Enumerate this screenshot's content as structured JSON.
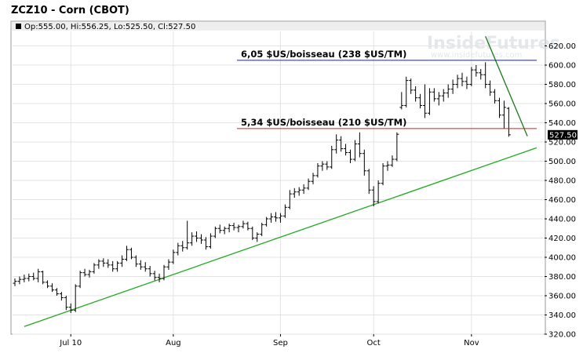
{
  "chart_data": {
    "type": "ohlc",
    "title": "ZCZ10 - Corn (CBOT)",
    "ohlc_summary": "Op:555.00, Hi:556.25, Lo:525.50, Cl:527.50",
    "last_price_label": "527.50",
    "watermark": "InsideFutures",
    "watermark_url": "www.insidefutures.com",
    "ylim": [
      320,
      640
    ],
    "y_ticks": [
      320,
      340,
      360,
      380,
      400,
      420,
      440,
      460,
      480,
      500,
      520,
      540,
      560,
      580,
      600,
      620
    ],
    "y_tick_labels": [
      "320.00",
      "340.00",
      "360.00",
      "380.00",
      "400.00",
      "420.00",
      "440.00",
      "460.00",
      "480.00",
      "500.00",
      "520.00",
      "540.00",
      "560.00",
      "580.00",
      "600.00",
      "620.00"
    ],
    "x_range": [
      0,
      112
    ],
    "x_ticks": [
      {
        "x": 12,
        "label": "Jul 10"
      },
      {
        "x": 34,
        "label": "Aug"
      },
      {
        "x": 57,
        "label": "Sep"
      },
      {
        "x": 77,
        "label": "Oct"
      },
      {
        "x": 98,
        "label": "Nov"
      }
    ],
    "annotations": [
      {
        "label": "6,05 $US/boisseau (238 $US/TM)",
        "price": 605,
        "x_start": 48,
        "x_end": 112,
        "color": "#1a2a6b"
      },
      {
        "label": "5,34 $US/boisseau (210 $US/TM)",
        "price": 534,
        "x_start": 48,
        "x_end": 112,
        "color": "#cc2222"
      }
    ],
    "trendlines": [
      {
        "x1": 2,
        "y1": 328,
        "x2": 112,
        "y2": 514,
        "color": "#22aa22"
      },
      {
        "x1": 101,
        "y1": 630,
        "x2": 110,
        "y2": 526,
        "color": "#1a7a1a"
      }
    ],
    "bars": [
      {
        "x": 0,
        "o": 373,
        "h": 378,
        "l": 370,
        "c": 375
      },
      {
        "x": 1,
        "o": 375,
        "h": 380,
        "l": 372,
        "c": 377
      },
      {
        "x": 2,
        "o": 377,
        "h": 382,
        "l": 374,
        "c": 378
      },
      {
        "x": 3,
        "o": 378,
        "h": 383,
        "l": 375,
        "c": 380
      },
      {
        "x": 4,
        "o": 380,
        "h": 384,
        "l": 376,
        "c": 378
      },
      {
        "x": 5,
        "o": 378,
        "h": 388,
        "l": 374,
        "c": 385
      },
      {
        "x": 6,
        "o": 385,
        "h": 386,
        "l": 372,
        "c": 374
      },
      {
        "x": 7,
        "o": 374,
        "h": 376,
        "l": 368,
        "c": 370
      },
      {
        "x": 8,
        "o": 370,
        "h": 373,
        "l": 364,
        "c": 366
      },
      {
        "x": 9,
        "o": 366,
        "h": 368,
        "l": 360,
        "c": 362
      },
      {
        "x": 10,
        "o": 362,
        "h": 364,
        "l": 355,
        "c": 358
      },
      {
        "x": 11,
        "o": 358,
        "h": 360,
        "l": 345,
        "c": 348
      },
      {
        "x": 12,
        "o": 348,
        "h": 352,
        "l": 342,
        "c": 345
      },
      {
        "x": 13,
        "o": 345,
        "h": 372,
        "l": 343,
        "c": 370
      },
      {
        "x": 14,
        "o": 370,
        "h": 386,
        "l": 368,
        "c": 384
      },
      {
        "x": 15,
        "o": 384,
        "h": 388,
        "l": 380,
        "c": 382
      },
      {
        "x": 16,
        "o": 382,
        "h": 387,
        "l": 379,
        "c": 385
      },
      {
        "x": 17,
        "o": 385,
        "h": 394,
        "l": 383,
        "c": 392
      },
      {
        "x": 18,
        "o": 392,
        "h": 398,
        "l": 388,
        "c": 396
      },
      {
        "x": 19,
        "o": 396,
        "h": 399,
        "l": 390,
        "c": 394
      },
      {
        "x": 20,
        "o": 394,
        "h": 398,
        "l": 389,
        "c": 392
      },
      {
        "x": 21,
        "o": 392,
        "h": 396,
        "l": 385,
        "c": 388
      },
      {
        "x": 22,
        "o": 388,
        "h": 396,
        "l": 385,
        "c": 394
      },
      {
        "x": 23,
        "o": 394,
        "h": 402,
        "l": 390,
        "c": 398
      },
      {
        "x": 24,
        "o": 398,
        "h": 412,
        "l": 396,
        "c": 408
      },
      {
        "x": 25,
        "o": 408,
        "h": 410,
        "l": 398,
        "c": 400
      },
      {
        "x": 26,
        "o": 400,
        "h": 402,
        "l": 390,
        "c": 393
      },
      {
        "x": 27,
        "o": 393,
        "h": 397,
        "l": 387,
        "c": 390
      },
      {
        "x": 28,
        "o": 390,
        "h": 395,
        "l": 385,
        "c": 388
      },
      {
        "x": 29,
        "o": 388,
        "h": 391,
        "l": 380,
        "c": 383
      },
      {
        "x": 30,
        "o": 383,
        "h": 386,
        "l": 376,
        "c": 379
      },
      {
        "x": 31,
        "o": 379,
        "h": 383,
        "l": 374,
        "c": 378
      },
      {
        "x": 32,
        "o": 378,
        "h": 392,
        "l": 376,
        "c": 390
      },
      {
        "x": 33,
        "o": 390,
        "h": 398,
        "l": 387,
        "c": 395
      },
      {
        "x": 34,
        "o": 395,
        "h": 408,
        "l": 393,
        "c": 405
      },
      {
        "x": 35,
        "o": 405,
        "h": 415,
        "l": 402,
        "c": 412
      },
      {
        "x": 36,
        "o": 412,
        "h": 417,
        "l": 406,
        "c": 410
      },
      {
        "x": 37,
        "o": 410,
        "h": 438,
        "l": 408,
        "c": 415
      },
      {
        "x": 38,
        "o": 415,
        "h": 426,
        "l": 412,
        "c": 422
      },
      {
        "x": 39,
        "o": 422,
        "h": 427,
        "l": 416,
        "c": 420
      },
      {
        "x": 40,
        "o": 420,
        "h": 424,
        "l": 414,
        "c": 418
      },
      {
        "x": 41,
        "o": 418,
        "h": 421,
        "l": 408,
        "c": 411
      },
      {
        "x": 42,
        "o": 411,
        "h": 425,
        "l": 409,
        "c": 422
      },
      {
        "x": 43,
        "o": 422,
        "h": 432,
        "l": 420,
        "c": 430
      },
      {
        "x": 44,
        "o": 430,
        "h": 434,
        "l": 425,
        "c": 428
      },
      {
        "x": 45,
        "o": 428,
        "h": 432,
        "l": 424,
        "c": 430
      },
      {
        "x": 46,
        "o": 430,
        "h": 435,
        "l": 426,
        "c": 433
      },
      {
        "x": 47,
        "o": 433,
        "h": 436,
        "l": 428,
        "c": 431
      },
      {
        "x": 48,
        "o": 431,
        "h": 434,
        "l": 426,
        "c": 432
      },
      {
        "x": 49,
        "o": 432,
        "h": 438,
        "l": 430,
        "c": 435
      },
      {
        "x": 50,
        "o": 435,
        "h": 437,
        "l": 428,
        "c": 430
      },
      {
        "x": 51,
        "o": 430,
        "h": 432,
        "l": 418,
        "c": 420
      },
      {
        "x": 52,
        "o": 420,
        "h": 426,
        "l": 416,
        "c": 424
      },
      {
        "x": 53,
        "o": 424,
        "h": 436,
        "l": 422,
        "c": 434
      },
      {
        "x": 54,
        "o": 434,
        "h": 442,
        "l": 432,
        "c": 440
      },
      {
        "x": 55,
        "o": 440,
        "h": 446,
        "l": 436,
        "c": 442
      },
      {
        "x": 56,
        "o": 442,
        "h": 447,
        "l": 437,
        "c": 441
      },
      {
        "x": 57,
        "o": 441,
        "h": 446,
        "l": 436,
        "c": 443
      },
      {
        "x": 58,
        "o": 443,
        "h": 455,
        "l": 441,
        "c": 452
      },
      {
        "x": 59,
        "o": 452,
        "h": 470,
        "l": 450,
        "c": 466
      },
      {
        "x": 60,
        "o": 466,
        "h": 472,
        "l": 462,
        "c": 468
      },
      {
        "x": 61,
        "o": 468,
        "h": 473,
        "l": 464,
        "c": 470
      },
      {
        "x": 62,
        "o": 470,
        "h": 476,
        "l": 466,
        "c": 472
      },
      {
        "x": 63,
        "o": 472,
        "h": 482,
        "l": 470,
        "c": 479
      },
      {
        "x": 64,
        "o": 479,
        "h": 488,
        "l": 476,
        "c": 485
      },
      {
        "x": 65,
        "o": 485,
        "h": 498,
        "l": 483,
        "c": 495
      },
      {
        "x": 66,
        "o": 495,
        "h": 500,
        "l": 490,
        "c": 497
      },
      {
        "x": 67,
        "o": 497,
        "h": 500,
        "l": 491,
        "c": 494
      },
      {
        "x": 68,
        "o": 494,
        "h": 516,
        "l": 492,
        "c": 512
      },
      {
        "x": 69,
        "o": 512,
        "h": 528,
        "l": 508,
        "c": 522
      },
      {
        "x": 70,
        "o": 522,
        "h": 526,
        "l": 510,
        "c": 513
      },
      {
        "x": 71,
        "o": 513,
        "h": 518,
        "l": 506,
        "c": 509
      },
      {
        "x": 72,
        "o": 509,
        "h": 512,
        "l": 498,
        "c": 502
      },
      {
        "x": 73,
        "o": 502,
        "h": 522,
        "l": 500,
        "c": 518
      },
      {
        "x": 74,
        "o": 518,
        "h": 530,
        "l": 504,
        "c": 508
      },
      {
        "x": 75,
        "o": 508,
        "h": 512,
        "l": 485,
        "c": 490
      },
      {
        "x": 76,
        "o": 490,
        "h": 492,
        "l": 466,
        "c": 470
      },
      {
        "x": 77,
        "o": 470,
        "h": 474,
        "l": 453,
        "c": 458
      },
      {
        "x": 78,
        "o": 458,
        "h": 480,
        "l": 456,
        "c": 477
      },
      {
        "x": 79,
        "o": 477,
        "h": 498,
        "l": 475,
        "c": 495
      },
      {
        "x": 80,
        "o": 495,
        "h": 500,
        "l": 490,
        "c": 496
      },
      {
        "x": 81,
        "o": 496,
        "h": 506,
        "l": 494,
        "c": 502
      },
      {
        "x": 82,
        "o": 502,
        "h": 530,
        "l": 500,
        "c": 528
      },
      {
        "x": 83,
        "o": 556,
        "h": 572,
        "l": 554,
        "c": 558
      },
      {
        "x": 84,
        "o": 558,
        "h": 588,
        "l": 556,
        "c": 584
      },
      {
        "x": 85,
        "o": 584,
        "h": 586,
        "l": 570,
        "c": 574
      },
      {
        "x": 86,
        "o": 574,
        "h": 578,
        "l": 562,
        "c": 566
      },
      {
        "x": 87,
        "o": 566,
        "h": 570,
        "l": 555,
        "c": 558
      },
      {
        "x": 88,
        "o": 558,
        "h": 580,
        "l": 545,
        "c": 550
      },
      {
        "x": 89,
        "o": 550,
        "h": 576,
        "l": 548,
        "c": 572
      },
      {
        "x": 90,
        "o": 572,
        "h": 576,
        "l": 562,
        "c": 565
      },
      {
        "x": 91,
        "o": 565,
        "h": 572,
        "l": 558,
        "c": 568
      },
      {
        "x": 92,
        "o": 568,
        "h": 575,
        "l": 562,
        "c": 571
      },
      {
        "x": 93,
        "o": 571,
        "h": 580,
        "l": 566,
        "c": 575
      },
      {
        "x": 94,
        "o": 575,
        "h": 585,
        "l": 570,
        "c": 580
      },
      {
        "x": 95,
        "o": 580,
        "h": 590,
        "l": 576,
        "c": 586
      },
      {
        "x": 96,
        "o": 586,
        "h": 592,
        "l": 578,
        "c": 583
      },
      {
        "x": 97,
        "o": 583,
        "h": 588,
        "l": 575,
        "c": 580
      },
      {
        "x": 98,
        "o": 580,
        "h": 598,
        "l": 578,
        "c": 595
      },
      {
        "x": 99,
        "o": 595,
        "h": 600,
        "l": 588,
        "c": 592
      },
      {
        "x": 100,
        "o": 592,
        "h": 596,
        "l": 585,
        "c": 590
      },
      {
        "x": 101,
        "o": 590,
        "h": 603,
        "l": 576,
        "c": 580
      },
      {
        "x": 102,
        "o": 580,
        "h": 584,
        "l": 568,
        "c": 572
      },
      {
        "x": 103,
        "o": 572,
        "h": 575,
        "l": 560,
        "c": 563
      },
      {
        "x": 104,
        "o": 563,
        "h": 566,
        "l": 545,
        "c": 548
      },
      {
        "x": 105,
        "o": 548,
        "h": 563,
        "l": 534,
        "c": 556
      },
      {
        "x": 106,
        "o": 555,
        "h": 556.25,
        "l": 525.5,
        "c": 527.5
      }
    ]
  }
}
